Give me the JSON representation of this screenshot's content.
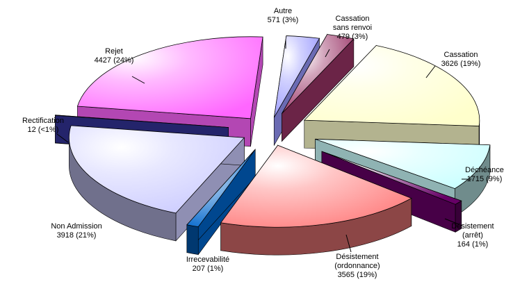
{
  "chart_data": {
    "type": "pie",
    "style": "3d-exploded",
    "title": "",
    "slices": [
      {
        "name": "Autre",
        "value": 571,
        "percent_label": "571 (3%)",
        "color": "#9999ff"
      },
      {
        "name": "Cassation sans renvoi",
        "value": 479,
        "percent_label": "479 (3%)",
        "color": "#993366"
      },
      {
        "name": "Cassation",
        "value": 3626,
        "percent_label": "3626 (19%)",
        "color": "#ffffcc"
      },
      {
        "name": "Déchéance",
        "value": 1715,
        "percent_label": "1715 (9%)",
        "color": "#ccffff"
      },
      {
        "name": "Désistement (arrêt)",
        "value": 164,
        "percent_label": "164 (1%)",
        "color": "#660066"
      },
      {
        "name": "Désistement (ordonnance)",
        "value": 3565,
        "percent_label": "3565 (19%)",
        "color": "#ff8080"
      },
      {
        "name": "Irrecevabilité",
        "value": 207,
        "percent_label": "207 (1%)",
        "color": "#0066cc"
      },
      {
        "name": "Non Admission",
        "value": 3918,
        "percent_label": "3918 (21%)",
        "color": "#ccccff"
      },
      {
        "name": "Rectification",
        "value": 12,
        "percent_label": "12 (<1%)",
        "color": "#333399"
      },
      {
        "name": "Rejet",
        "value": 4427,
        "percent_label": "4427 (24%)",
        "color": "#ff66ff"
      }
    ],
    "labels": [
      {
        "lines": [
          "Autre",
          "571 (3%)"
        ]
      },
      {
        "lines": [
          "Cassation",
          "sans renvoi",
          "479 (3%)"
        ]
      },
      {
        "lines": [
          "Cassation",
          "3626 (19%)"
        ]
      },
      {
        "lines": [
          "Déchéance",
          "1715 (9%)"
        ]
      },
      {
        "lines": [
          "Désistement",
          "(arrêt)",
          "164 (1%)"
        ]
      },
      {
        "lines": [
          "Désistement",
          "(ordonnance)",
          "3565 (19%)"
        ]
      },
      {
        "lines": [
          "Irrecevabilité",
          "207 (1%)"
        ]
      },
      {
        "lines": [
          "Non Admission",
          "3918 (21%)"
        ]
      },
      {
        "lines": [
          "Rectification",
          "12 (<1%)"
        ]
      },
      {
        "lines": [
          "Rejet",
          "4427 (24%)"
        ]
      }
    ]
  }
}
